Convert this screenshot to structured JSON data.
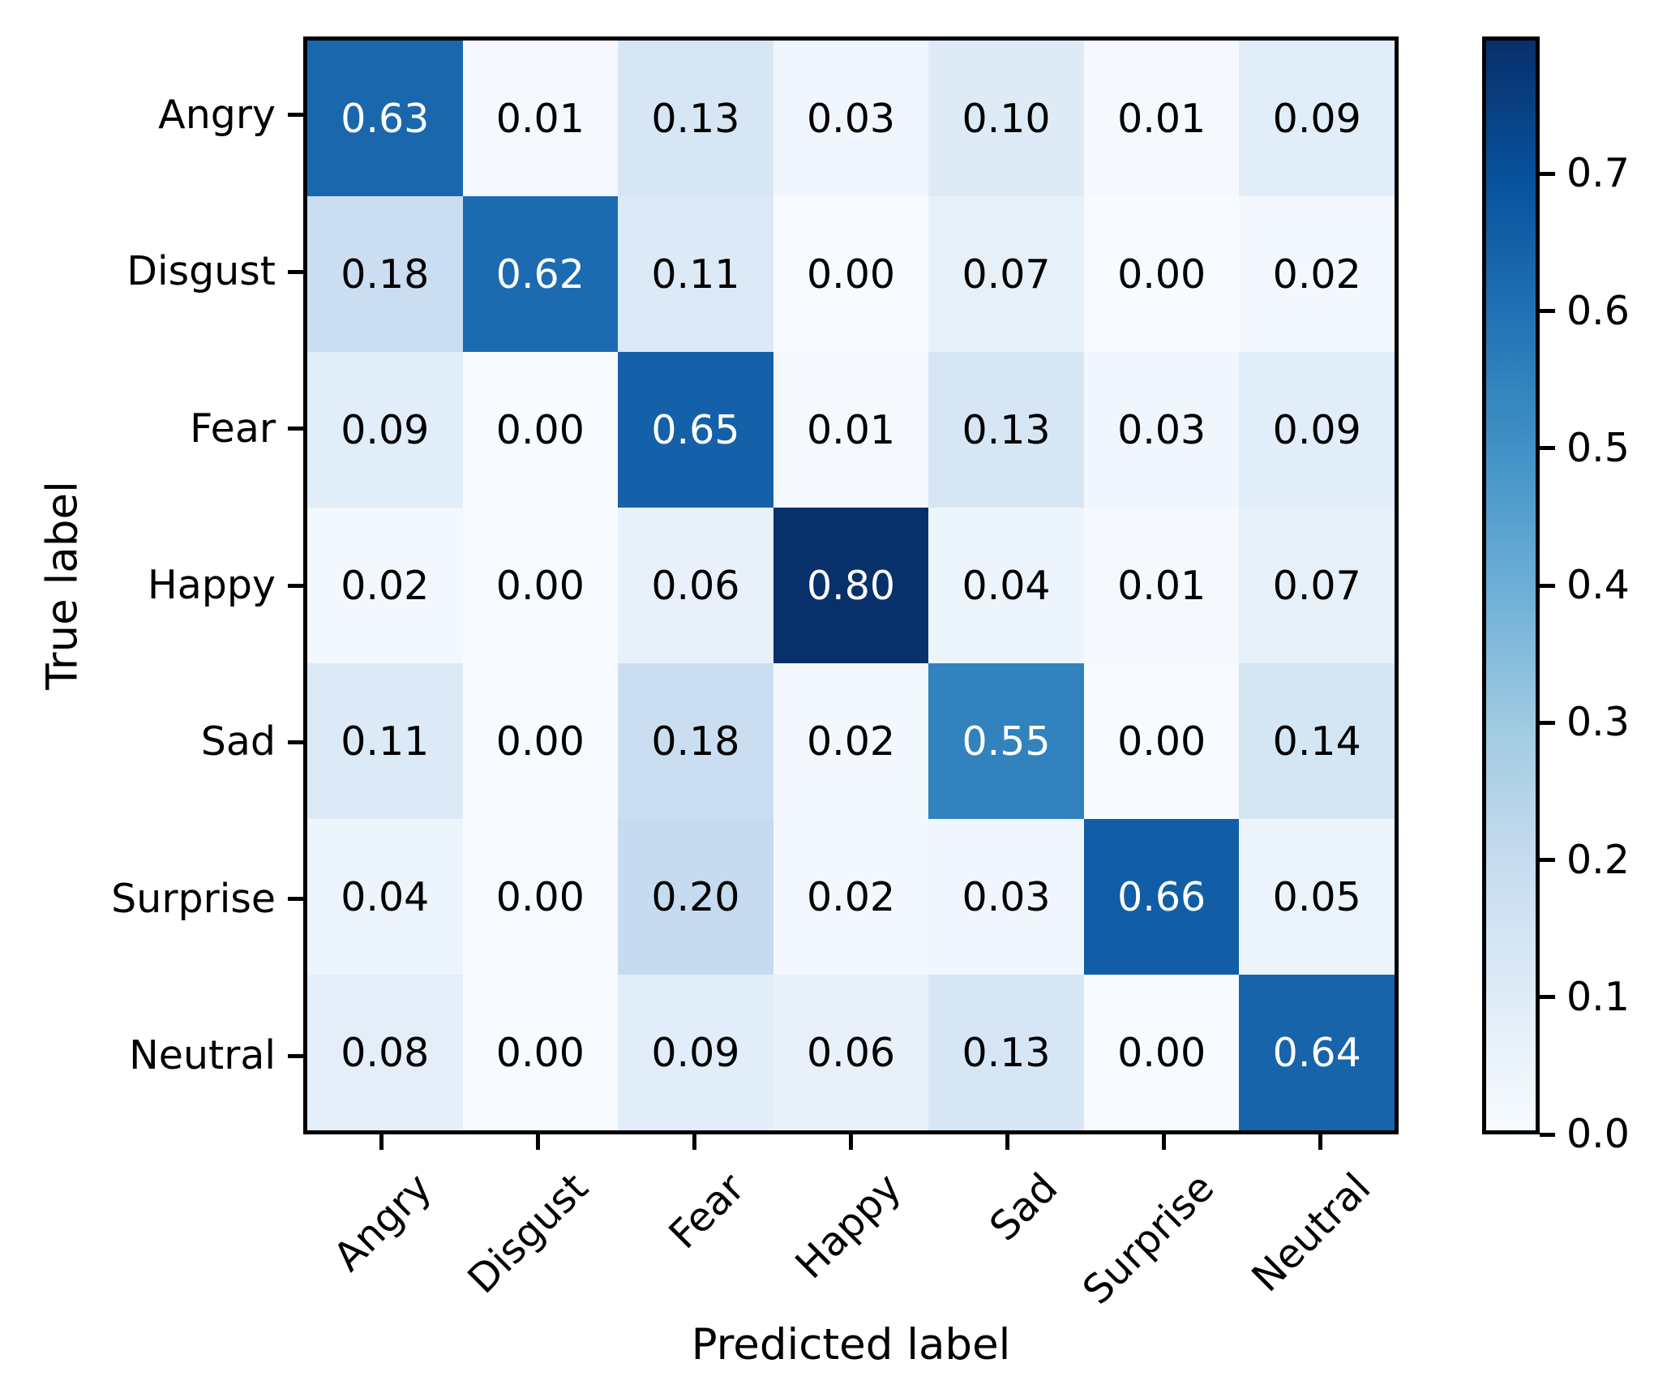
{
  "chart_data": {
    "type": "heatmap",
    "title": "",
    "xlabel": "Predicted label",
    "ylabel": "True label",
    "categories": [
      "Angry",
      "Disgust",
      "Fear",
      "Happy",
      "Sad",
      "Surprise",
      "Neutral"
    ],
    "x_tick_labels": [
      "Angry",
      "Disgust",
      "Fear",
      "Happy",
      "Sad",
      "Surprise",
      "Neutral"
    ],
    "y_tick_labels": [
      "Angry",
      "Disgust",
      "Fear",
      "Happy",
      "Sad",
      "Surprise",
      "Neutral"
    ],
    "matrix": [
      [
        0.63,
        0.01,
        0.13,
        0.03,
        0.1,
        0.01,
        0.09
      ],
      [
        0.18,
        0.62,
        0.11,
        0.0,
        0.07,
        0.0,
        0.02
      ],
      [
        0.09,
        0.0,
        0.65,
        0.01,
        0.13,
        0.03,
        0.09
      ],
      [
        0.02,
        0.0,
        0.06,
        0.8,
        0.04,
        0.01,
        0.07
      ],
      [
        0.11,
        0.0,
        0.18,
        0.02,
        0.55,
        0.0,
        0.14
      ],
      [
        0.04,
        0.0,
        0.2,
        0.02,
        0.03,
        0.66,
        0.05
      ],
      [
        0.08,
        0.0,
        0.09,
        0.06,
        0.13,
        0.0,
        0.64
      ]
    ],
    "value_decimals": 2,
    "vmin": 0.0,
    "vmax": 0.8,
    "colormap": "Blues",
    "colormap_stops": [
      "#f7fbff",
      "#deebf7",
      "#c6dbef",
      "#9ecae1",
      "#6baed6",
      "#4292c6",
      "#2171b5",
      "#08519c",
      "#08306b"
    ],
    "cell_text_light": "#ffffff",
    "cell_text_dark": "#000000",
    "text_color_threshold": 0.4,
    "colorbar_ticks": [
      0.0,
      0.1,
      0.2,
      0.3,
      0.4,
      0.5,
      0.6,
      0.7
    ],
    "colorbar_tick_decimals": 1,
    "grid": false,
    "legend_position": "none"
  }
}
